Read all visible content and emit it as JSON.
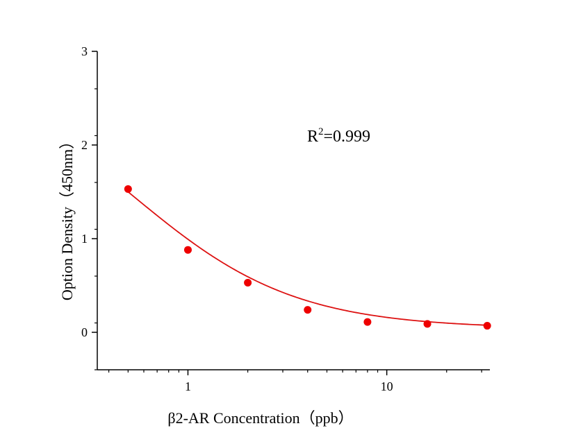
{
  "chart_data": {
    "type": "scatter",
    "xlabel": "β2-AR Concentration（ppb）",
    "ylabel": "Option Density（450nm）",
    "x_scale": "log",
    "x_range": [
      0.35,
      33
    ],
    "ylim": [
      -0.4,
      3
    ],
    "x_ticks": [
      1,
      10
    ],
    "x_tick_labels": [
      "1",
      "10"
    ],
    "y_ticks": [
      0,
      1,
      2,
      3
    ],
    "y_tick_labels": [
      "0",
      "1",
      "2",
      "3"
    ],
    "annotation": {
      "base": "R",
      "sup": "2",
      "rest": "=0.999"
    },
    "points": [
      {
        "x": 0.5,
        "y": 1.53
      },
      {
        "x": 1,
        "y": 0.88
      },
      {
        "x": 2,
        "y": 0.53
      },
      {
        "x": 4,
        "y": 0.24
      },
      {
        "x": 8,
        "y": 0.11
      },
      {
        "x": 16,
        "y": 0.09
      },
      {
        "x": 32,
        "y": 0.07
      }
    ],
    "fit_curve": {
      "type": "4PL",
      "A": 2.9,
      "D": 0.04,
      "C": 0.52,
      "B": 1.06,
      "x_from": 0.5,
      "x_to": 32
    },
    "grid": false,
    "colors": {
      "points": "#ee0000",
      "curve": "#dd1111",
      "axes": "#000000"
    }
  }
}
